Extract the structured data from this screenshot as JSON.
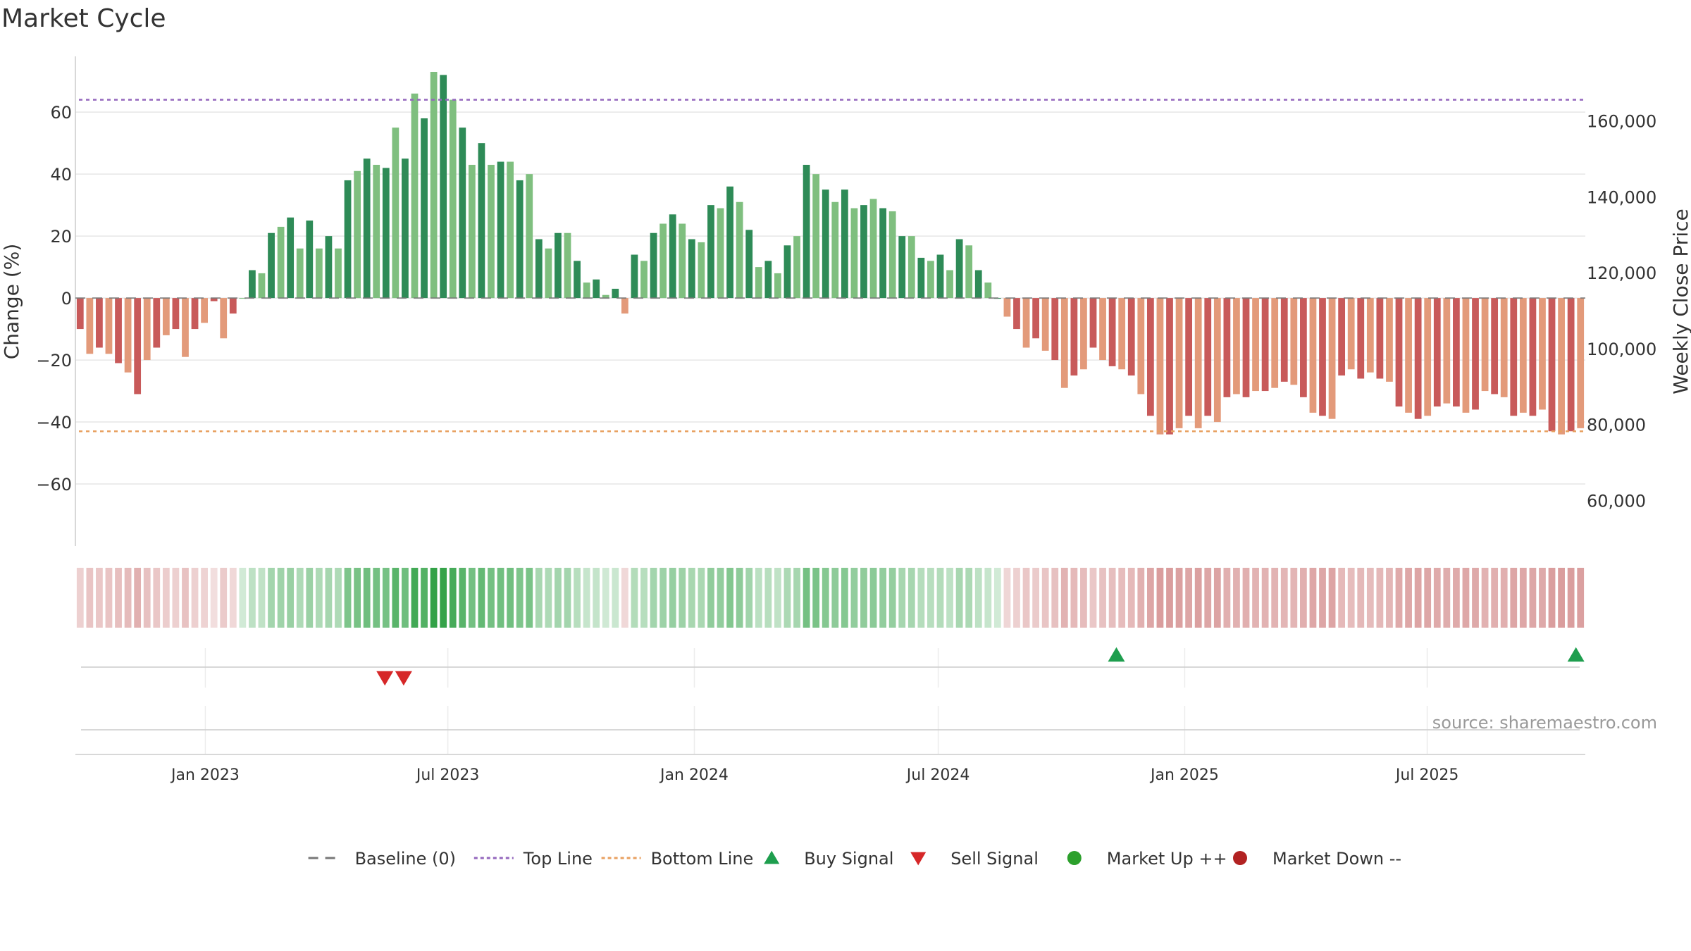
{
  "chart_data": {
    "type": "bar",
    "title": "Market Cycle",
    "ylabel": "Change (%)",
    "y2label": "Weekly Close Price",
    "source": "source: sharemaestro.com",
    "ylim": [
      -80,
      78
    ],
    "y2lim": [
      48000,
      177000
    ],
    "yticks": [
      60,
      40,
      20,
      0,
      -20,
      -40,
      -60
    ],
    "ytick_labels": [
      "60",
      "40",
      "20",
      "0",
      "−20",
      "−40",
      "−60"
    ],
    "y2ticks": [
      160000,
      140000,
      120000,
      100000,
      80000,
      60000
    ],
    "y2tick_labels": [
      "160,000",
      "140,000",
      "120,000",
      "100,000",
      "80,000",
      "60,000"
    ],
    "x_start": "2022-09-26",
    "x_end": "2025-10-27",
    "xticks": [
      "2023-01-01",
      "2023-07-01",
      "2024-01-01",
      "2024-07-01",
      "2025-01-01",
      "2025-07-01"
    ],
    "xtick_labels": [
      "Jan 2023",
      "Jul 2023",
      "Jan 2024",
      "Jul 2024",
      "Jan 2025",
      "Jul 2025"
    ],
    "first_week": "2022-09-26",
    "top_line": 64,
    "bottom_line": -43,
    "grid": true,
    "values": [
      -10,
      -18,
      -16,
      -18,
      -21,
      -24,
      -31,
      -20,
      -16,
      -12,
      -10,
      -19,
      -10,
      -8,
      -1,
      -13,
      -5,
      0,
      9,
      8,
      21,
      23,
      26,
      16,
      25,
      16,
      20,
      16,
      38,
      41,
      45,
      43,
      42,
      55,
      45,
      66,
      58,
      73,
      72,
      64,
      55,
      43,
      50,
      43,
      44,
      44,
      38,
      40,
      19,
      16,
      21,
      21,
      12,
      5,
      6,
      1,
      3,
      -5,
      14,
      12,
      21,
      24,
      27,
      24,
      19,
      18,
      30,
      29,
      36,
      31,
      22,
      10,
      12,
      8,
      17,
      20,
      43,
      40,
      35,
      31,
      35,
      29,
      30,
      32,
      29,
      28,
      20,
      20,
      13,
      12,
      14,
      9,
      19,
      17,
      9,
      5,
      0,
      -6,
      -10,
      -16,
      -13,
      -17,
      -20,
      -29,
      -25,
      -23,
      -16,
      -20,
      -22,
      -23,
      -25,
      -31,
      -38,
      -44,
      -44,
      -42,
      -38,
      -42,
      -38,
      -40,
      -32,
      -31,
      -32,
      -30,
      -30,
      -29,
      -27,
      -28,
      -32,
      -37,
      -38,
      -39,
      -25,
      -23,
      -26,
      -24,
      -26,
      -27,
      -35,
      -37,
      -39,
      -38,
      -35,
      -34,
      -35,
      -37,
      -36,
      -30,
      -31,
      -32,
      -38,
      -37,
      -38,
      -36,
      -43,
      -44,
      -43,
      -42
    ],
    "buy_signals": [
      "2024-11-11",
      "2025-10-20"
    ],
    "sell_signals": [
      "2023-05-15",
      "2023-05-29"
    ],
    "legend": [
      {
        "label": "Baseline (0)",
        "symbol": "dash",
        "color": "#777777"
      },
      {
        "label": "Top Line",
        "symbol": "dot",
        "color": "#9467bd"
      },
      {
        "label": "Bottom Line",
        "symbol": "dot",
        "color": "#e8a060"
      },
      {
        "label": "Buy Signal",
        "symbol": "triangle-up",
        "color": "#1e9e4e"
      },
      {
        "label": "Sell Signal",
        "symbol": "triangle-down",
        "color": "#d62728"
      },
      {
        "label": "Market Up ++",
        "symbol": "circle",
        "color": "#2ca02c"
      },
      {
        "label": "Market Down --",
        "symbol": "circle",
        "color": "#b22222"
      }
    ],
    "colors": {
      "up_dark": "#2e8b57",
      "up_light": "#7fbf7f",
      "down_dark": "#c85a5a",
      "down_light": "#e39a7a",
      "top_line": "#9467bd",
      "bottom_line": "#e8a060",
      "buy": "#1e9e4e",
      "sell": "#d62728"
    }
  }
}
